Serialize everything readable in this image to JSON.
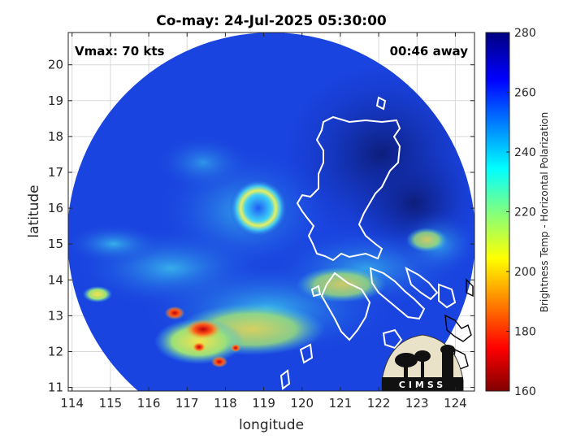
{
  "title": "Co-may: 24-Jul-2025 05:30:00",
  "annotations": {
    "vmax": "Vmax: 70 kts",
    "away": "00:46 away"
  },
  "axes": {
    "xlabel": "longitude",
    "ylabel": "latitude",
    "xticks": [
      "114",
      "115",
      "116",
      "117",
      "118",
      "119",
      "120",
      "121",
      "122",
      "123",
      "124"
    ],
    "yticks": [
      "11",
      "12",
      "13",
      "14",
      "15",
      "16",
      "17",
      "18",
      "19",
      "20"
    ],
    "xrange": [
      113.9,
      124.5
    ],
    "yrange": [
      10.9,
      20.9
    ],
    "grid": true
  },
  "colorbar": {
    "label": "Brightness Temp - Horizontal Polarization",
    "ticks": [
      "160",
      "180",
      "200",
      "220",
      "240",
      "260",
      "280"
    ],
    "range": [
      160,
      280
    ],
    "colormap": "jet"
  },
  "logo": {
    "text": "CIMSS"
  },
  "colors": {
    "swath_background": "#1a44e0",
    "coastline": "#ffffff",
    "land_outside_swath": "#000000"
  }
}
